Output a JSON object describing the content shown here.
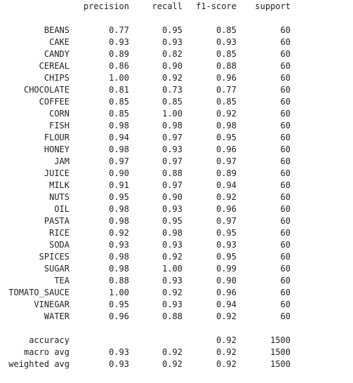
{
  "report": {
    "headers": {
      "precision": "precision",
      "recall": "recall",
      "f1": "f1-score",
      "support": "support"
    },
    "rows": [
      {
        "label": "BEANS",
        "precision": "0.77",
        "recall": "0.95",
        "f1": "0.85",
        "support": "60"
      },
      {
        "label": "CAKE",
        "precision": "0.93",
        "recall": "0.93",
        "f1": "0.93",
        "support": "60"
      },
      {
        "label": "CANDY",
        "precision": "0.89",
        "recall": "0.82",
        "f1": "0.85",
        "support": "60"
      },
      {
        "label": "CEREAL",
        "precision": "0.86",
        "recall": "0.90",
        "f1": "0.88",
        "support": "60"
      },
      {
        "label": "CHIPS",
        "precision": "1.00",
        "recall": "0.92",
        "f1": "0.96",
        "support": "60"
      },
      {
        "label": "CHOCOLATE",
        "precision": "0.81",
        "recall": "0.73",
        "f1": "0.77",
        "support": "60"
      },
      {
        "label": "COFFEE",
        "precision": "0.85",
        "recall": "0.85",
        "f1": "0.85",
        "support": "60"
      },
      {
        "label": "CORN",
        "precision": "0.85",
        "recall": "1.00",
        "f1": "0.92",
        "support": "60"
      },
      {
        "label": "FISH",
        "precision": "0.98",
        "recall": "0.98",
        "f1": "0.98",
        "support": "60"
      },
      {
        "label": "FLOUR",
        "precision": "0.94",
        "recall": "0.97",
        "f1": "0.95",
        "support": "60"
      },
      {
        "label": "HONEY",
        "precision": "0.98",
        "recall": "0.93",
        "f1": "0.96",
        "support": "60"
      },
      {
        "label": "JAM",
        "precision": "0.97",
        "recall": "0.97",
        "f1": "0.97",
        "support": "60"
      },
      {
        "label": "JUICE",
        "precision": "0.90",
        "recall": "0.88",
        "f1": "0.89",
        "support": "60"
      },
      {
        "label": "MILK",
        "precision": "0.91",
        "recall": "0.97",
        "f1": "0.94",
        "support": "60"
      },
      {
        "label": "NUTS",
        "precision": "0.95",
        "recall": "0.90",
        "f1": "0.92",
        "support": "60"
      },
      {
        "label": "OIL",
        "precision": "0.98",
        "recall": "0.93",
        "f1": "0.96",
        "support": "60"
      },
      {
        "label": "PASTA",
        "precision": "0.98",
        "recall": "0.95",
        "f1": "0.97",
        "support": "60"
      },
      {
        "label": "RICE",
        "precision": "0.92",
        "recall": "0.98",
        "f1": "0.95",
        "support": "60"
      },
      {
        "label": "SODA",
        "precision": "0.93",
        "recall": "0.93",
        "f1": "0.93",
        "support": "60"
      },
      {
        "label": "SPICES",
        "precision": "0.98",
        "recall": "0.92",
        "f1": "0.95",
        "support": "60"
      },
      {
        "label": "SUGAR",
        "precision": "0.98",
        "recall": "1.00",
        "f1": "0.99",
        "support": "60"
      },
      {
        "label": "TEA",
        "precision": "0.88",
        "recall": "0.93",
        "f1": "0.90",
        "support": "60"
      },
      {
        "label": "TOMATO_SAUCE",
        "precision": "1.00",
        "recall": "0.92",
        "f1": "0.96",
        "support": "60"
      },
      {
        "label": "VINEGAR",
        "precision": "0.95",
        "recall": "0.93",
        "f1": "0.94",
        "support": "60"
      },
      {
        "label": "WATER",
        "precision": "0.96",
        "recall": "0.88",
        "f1": "0.92",
        "support": "60"
      }
    ],
    "summary": [
      {
        "label": "accuracy",
        "precision": "",
        "recall": "",
        "f1": "0.92",
        "support": "1500"
      },
      {
        "label": "macro avg",
        "precision": "0.93",
        "recall": "0.92",
        "f1": "0.92",
        "support": "1500"
      },
      {
        "label": "weighted avg",
        "precision": "0.93",
        "recall": "0.92",
        "f1": "0.92",
        "support": "1500"
      }
    ]
  }
}
